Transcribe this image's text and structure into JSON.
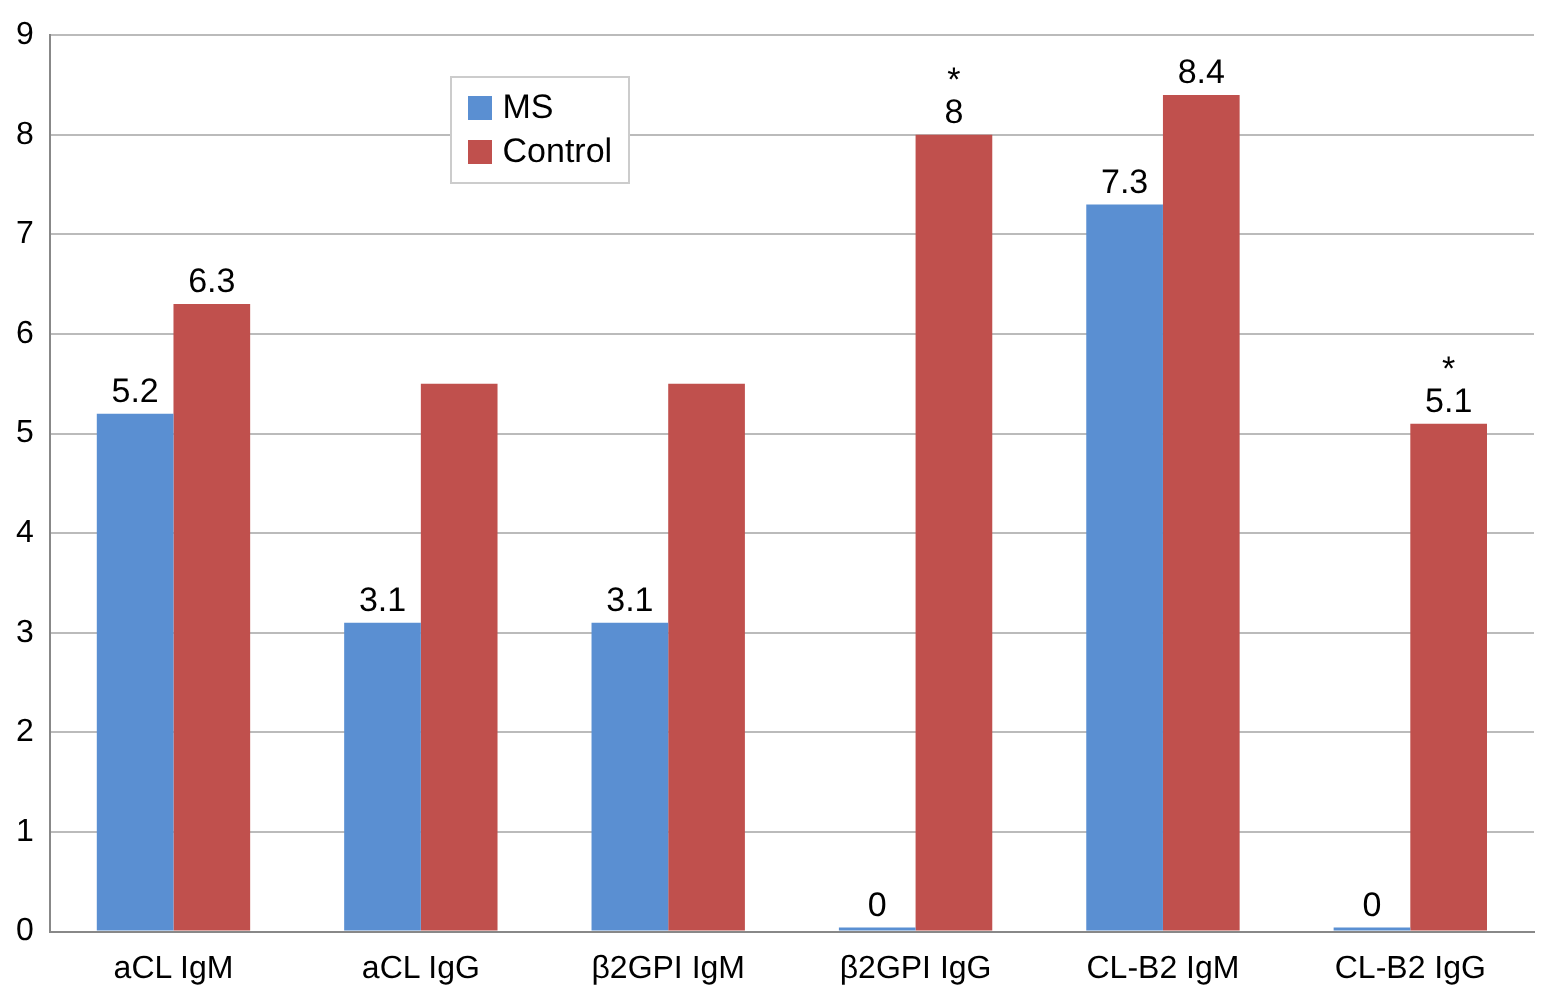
{
  "chart_data": {
    "type": "bar",
    "categories": [
      "aCL IgM",
      "aCL IgG",
      "β2GPI IgM",
      "β2GPI IgG",
      "CL-B2 IgM",
      "CL-B2 IgG"
    ],
    "series": [
      {
        "name": "MS",
        "color": "#5a8fd2",
        "values": [
          5.2,
          3.1,
          3.1,
          0,
          7.3,
          0
        ],
        "value_labels": [
          "5.2",
          "3.1",
          "3.1",
          "0",
          "7.3",
          "0"
        ]
      },
      {
        "name": "Control",
        "color": "#c0504d",
        "values": [
          6.3,
          5.5,
          5.5,
          8,
          8.4,
          5.1
        ],
        "value_labels": [
          "6.3",
          null,
          null,
          "8",
          "8.4",
          "5.1"
        ]
      }
    ],
    "ylim": [
      0,
      9
    ],
    "yticks": [
      0,
      1,
      2,
      3,
      4,
      5,
      6,
      7,
      8,
      9
    ],
    "grid": "y",
    "legend": "top left",
    "annotations": [
      {
        "text": "*",
        "x": "β2GPI IgG",
        "y": 8
      },
      {
        "text": "*",
        "x": "CL-B2 IgG",
        "y": 5.1
      }
    ]
  }
}
